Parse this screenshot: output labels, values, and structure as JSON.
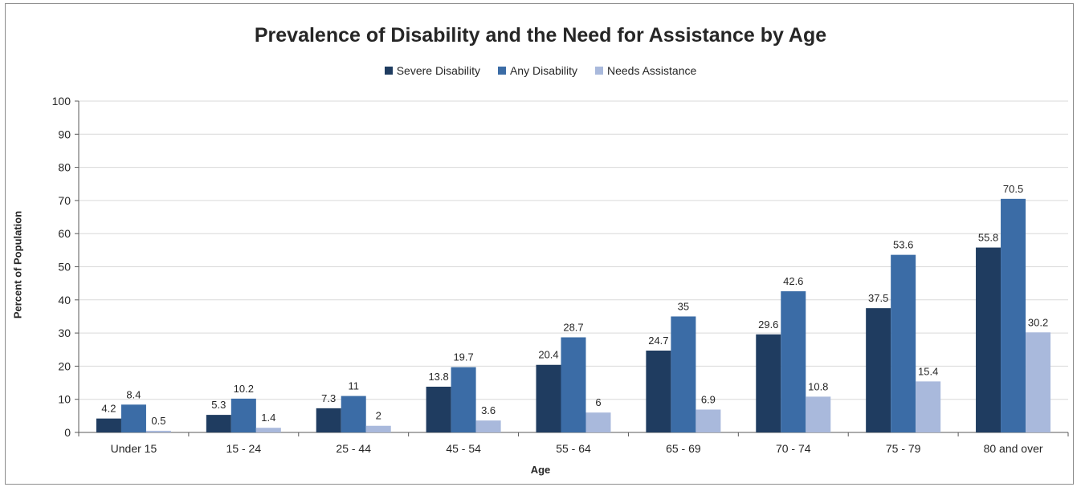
{
  "chart_data": {
    "type": "bar",
    "title": "Prevalence of Disability and the Need for Assistance by Age",
    "xlabel": "Age",
    "ylabel": "Percent of Population",
    "ylim": [
      0,
      100
    ],
    "yticks": [
      0,
      10,
      20,
      30,
      40,
      50,
      60,
      70,
      80,
      90,
      100
    ],
    "grid": true,
    "legend_position": "top",
    "categories": [
      "Under 15",
      "15 - 24",
      "25 - 44",
      "45 - 54",
      "55 - 64",
      "65 - 69",
      "70 - 74",
      "75 - 79",
      "80 and over"
    ],
    "series": [
      {
        "name": "Severe Disability",
        "color": "#1f3c60",
        "values": [
          4.2,
          5.3,
          7.3,
          13.8,
          20.4,
          24.7,
          29.6,
          37.5,
          55.8
        ]
      },
      {
        "name": "Any Disability",
        "color": "#3b6ca6",
        "values": [
          8.4,
          10.2,
          11,
          19.7,
          28.7,
          35,
          42.6,
          53.6,
          70.5
        ]
      },
      {
        "name": "Needs Assistance",
        "color": "#a9b9dc",
        "values": [
          0.5,
          1.4,
          2,
          3.6,
          6,
          6.9,
          10.8,
          15.4,
          30.2
        ]
      }
    ]
  }
}
